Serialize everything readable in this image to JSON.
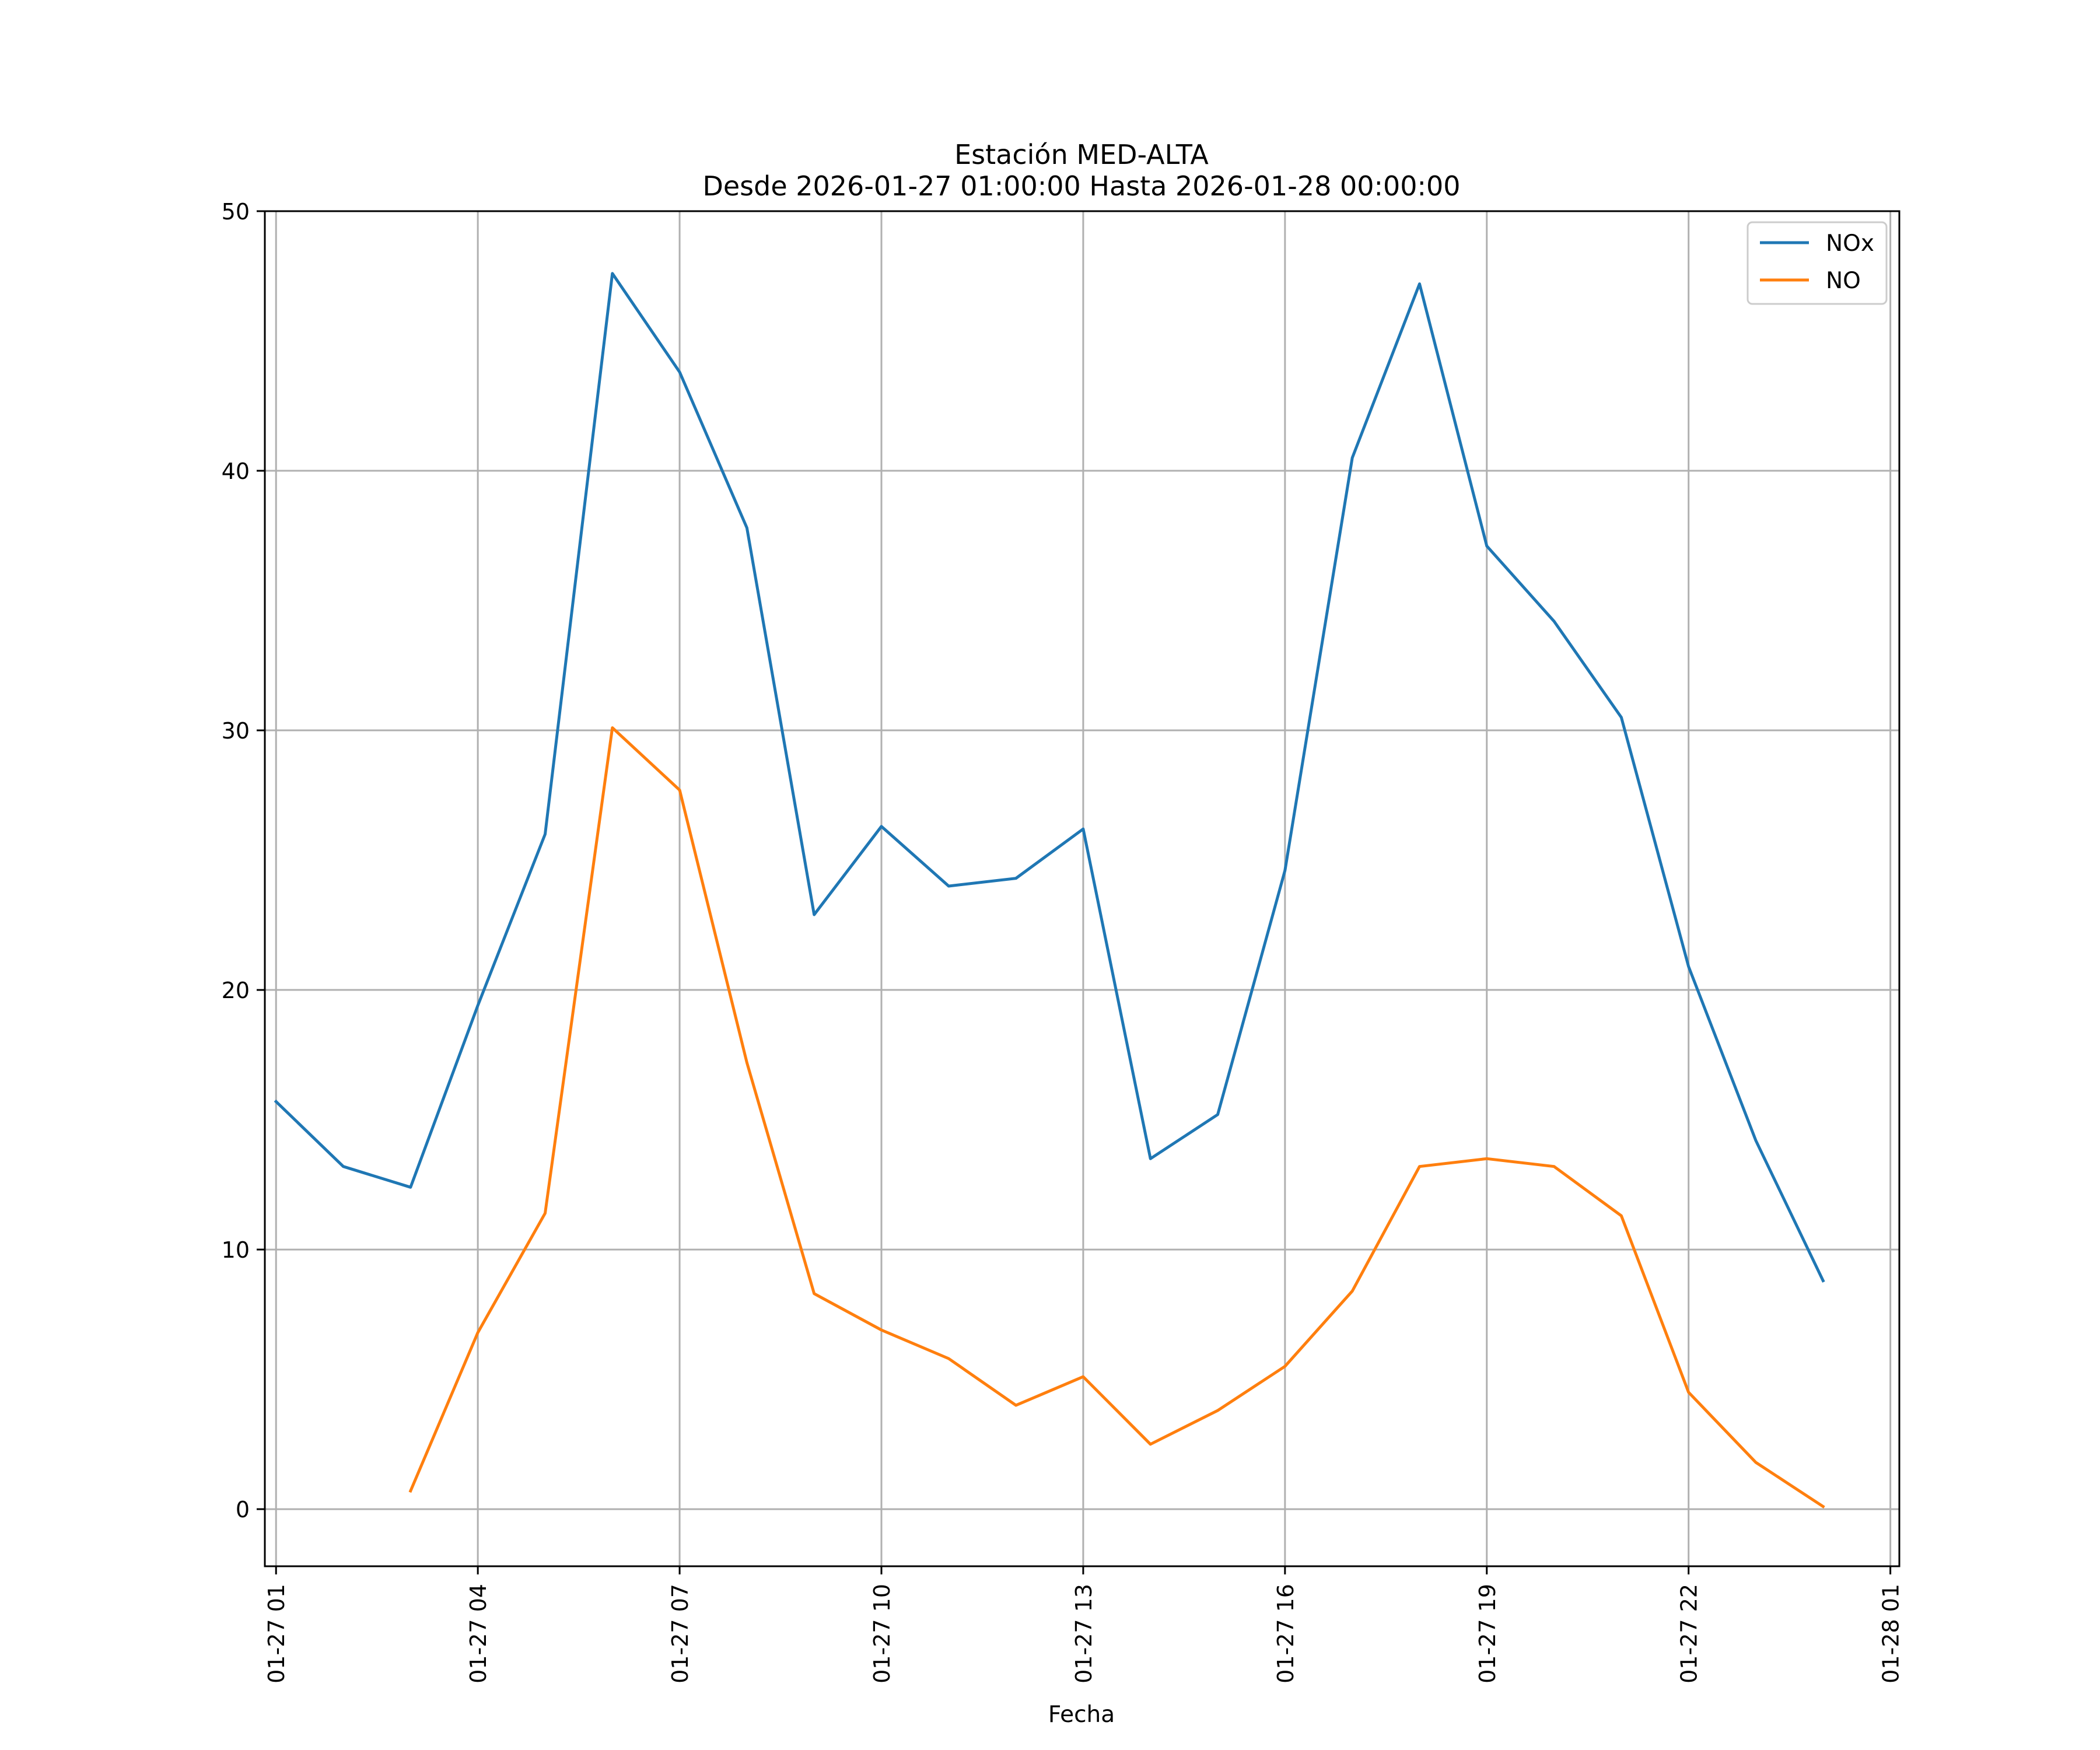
{
  "chart_data": {
    "type": "line",
    "title": "Estación MED-ALTA",
    "subtitle": "Desde 2026-01-27 01:00:00 Hasta 2026-01-28 00:00:00",
    "xlabel": "Fecha",
    "ylabel": "",
    "x": [
      "2026-01-27 01:00",
      "2026-01-27 02:00",
      "2026-01-27 03:00",
      "2026-01-27 04:00",
      "2026-01-27 05:00",
      "2026-01-27 06:00",
      "2026-01-27 07:00",
      "2026-01-27 08:00",
      "2026-01-27 09:00",
      "2026-01-27 10:00",
      "2026-01-27 11:00",
      "2026-01-27 12:00",
      "2026-01-27 13:00",
      "2026-01-27 14:00",
      "2026-01-27 15:00",
      "2026-01-27 16:00",
      "2026-01-27 17:00",
      "2026-01-27 18:00",
      "2026-01-27 19:00",
      "2026-01-27 20:00",
      "2026-01-27 21:00",
      "2026-01-27 22:00",
      "2026-01-27 23:00",
      "2026-01-28 00:00"
    ],
    "series": [
      {
        "name": "NOx",
        "color": "#1f77b4",
        "values": [
          15.7,
          13.2,
          12.4,
          19.4,
          26.0,
          47.6,
          43.8,
          37.8,
          22.9,
          26.3,
          24.0,
          24.3,
          26.2,
          13.5,
          15.2,
          24.6,
          40.5,
          47.2,
          37.1,
          34.2,
          30.5,
          20.9,
          14.2,
          8.8
        ]
      },
      {
        "name": "NO",
        "color": "#ff7f0e",
        "values": [
          null,
          null,
          0.7,
          6.8,
          11.4,
          30.1,
          27.7,
          17.2,
          8.3,
          6.9,
          5.8,
          4.0,
          5.1,
          2.5,
          3.8,
          5.5,
          8.4,
          13.2,
          13.5,
          13.2,
          11.3,
          4.5,
          1.8,
          0.1
        ]
      }
    ],
    "xticks": [
      "01-27 01",
      "01-27 04",
      "01-27 07",
      "01-27 10",
      "01-27 13",
      "01-27 16",
      "01-27 19",
      "01-27 22",
      "01-28 01"
    ],
    "yticks": [
      0,
      10,
      20,
      30,
      40,
      50
    ],
    "ylim": [
      -2.2,
      50
    ],
    "xlim": [
      "2026-01-27 00:50",
      "2026-01-28 01:08"
    ],
    "grid": true,
    "legend_position": "top-right"
  }
}
